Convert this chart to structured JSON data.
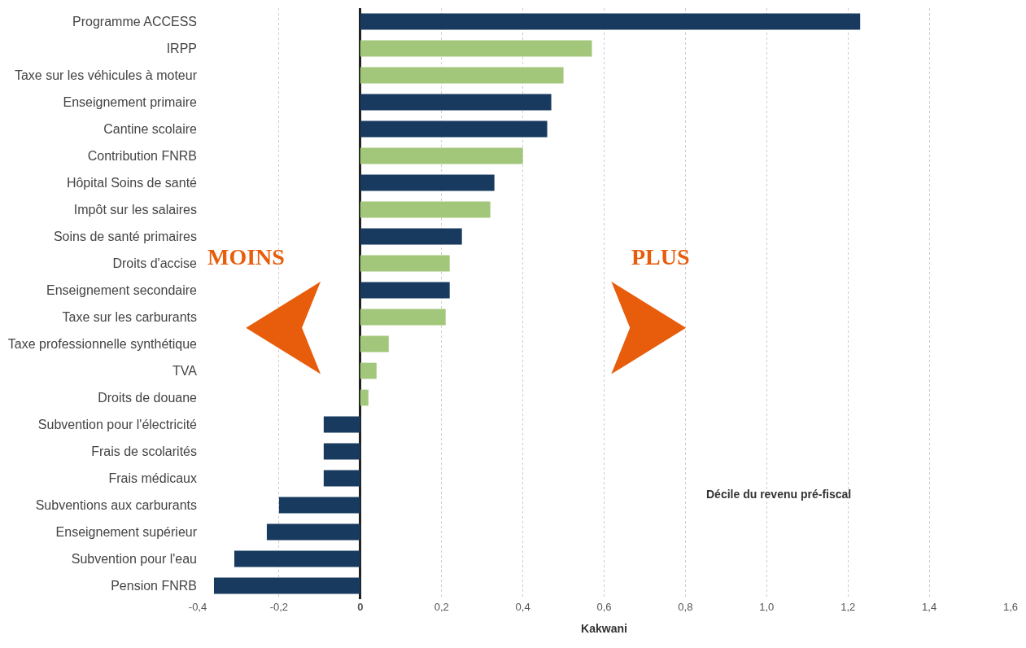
{
  "chart_data": {
    "type": "bar",
    "orientation": "horizontal",
    "xlabel": "Kakwani",
    "categories": [
      "Programme ACCESS",
      "IRPP",
      "Taxe sur les véhicules à moteur",
      "Enseignement primaire",
      "Cantine scolaire",
      "Contribution FNRB",
      "Hôpital Soins de santé",
      "Impôt sur les salaires",
      "Soins de santé primaires",
      "Droits d'accise",
      "Enseignement secondaire",
      "Taxe sur les carburants",
      "Taxe professionnelle synthétique",
      "TVA",
      "Droits de douane",
      "Subvention pour l'électricité",
      "Frais de scolarités",
      "Frais médicaux",
      "Subventions aux carburants",
      "Enseignement supérieur",
      "Subvention pour l'eau",
      "Pension FNRB"
    ],
    "values": [
      1.23,
      0.57,
      0.5,
      0.47,
      0.46,
      0.4,
      0.33,
      0.32,
      0.25,
      0.22,
      0.22,
      0.21,
      0.07,
      0.04,
      0.02,
      -0.09,
      -0.09,
      -0.09,
      -0.2,
      -0.23,
      -0.31,
      -0.36
    ],
    "colors": [
      "#173a5e",
      "#a2c77a",
      "#a2c77a",
      "#173a5e",
      "#173a5e",
      "#a2c77a",
      "#173a5e",
      "#a2c77a",
      "#173a5e",
      "#a2c77a",
      "#173a5e",
      "#a2c77a",
      "#a2c77a",
      "#a2c77a",
      "#a2c77a",
      "#173a5e",
      "#173a5e",
      "#173a5e",
      "#173a5e",
      "#173a5e",
      "#173a5e",
      "#173a5e"
    ],
    "xlim": [
      -0.4,
      1.6
    ],
    "xticks": [
      {
        "value": -0.4,
        "label": "-0,4"
      },
      {
        "value": -0.2,
        "label": "-0,2"
      },
      0,
      {
        "value": 0.2,
        "label": "0,2"
      },
      {
        "value": 0.4,
        "label": "0,4"
      },
      {
        "value": 0.6,
        "label": "0,6"
      },
      {
        "value": 0.8,
        "label": "0,8"
      },
      {
        "value": 1.0,
        "label": "1,0"
      },
      {
        "value": 1.2,
        "label": "1,2"
      },
      {
        "value": 1.4,
        "label": "1,4"
      },
      {
        "value": 1.6,
        "label": "1,6"
      }
    ],
    "grid": "x",
    "annotations": [
      "MOINS",
      "PLUS",
      "Décile du revenu pré-fiscal"
    ]
  }
}
